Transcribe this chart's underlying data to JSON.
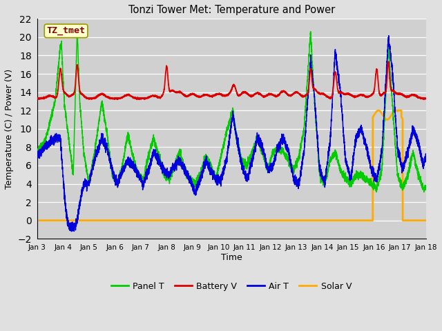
{
  "title": "Tonzi Tower Met: Temperature and Power",
  "xlabel": "Time",
  "ylabel": "Temperature (C) / Power (V)",
  "ylim": [
    -2,
    22
  ],
  "yticks": [
    -2,
    0,
    2,
    4,
    6,
    8,
    10,
    12,
    14,
    16,
    18,
    20,
    22
  ],
  "colors": {
    "panel_t": "#00cc00",
    "battery_v": "#dd0000",
    "air_t": "#0000dd",
    "solar_v": "#ffaa00"
  },
  "legend_labels": [
    "Panel T",
    "Battery V",
    "Air T",
    "Solar V"
  ],
  "annotation_text": "TZ_tmet",
  "annotation_color": "#880000",
  "annotation_bg": "#ffffcc",
  "x_start": 3,
  "x_end": 18,
  "x_ticks": [
    3,
    4,
    5,
    6,
    7,
    8,
    9,
    10,
    11,
    12,
    13,
    14,
    15,
    16,
    17,
    18
  ],
  "x_tick_labels": [
    "Jan 3",
    "Jan 4",
    "Jan 5",
    "Jan 6",
    "Jan 7",
    "Jan 8",
    "Jan 9",
    "Jan 10",
    "Jan 11",
    "Jan 12",
    "Jan 13",
    "Jan 14",
    "Jan 15",
    "Jan 16",
    "Jan 17",
    "Jan 18"
  ]
}
